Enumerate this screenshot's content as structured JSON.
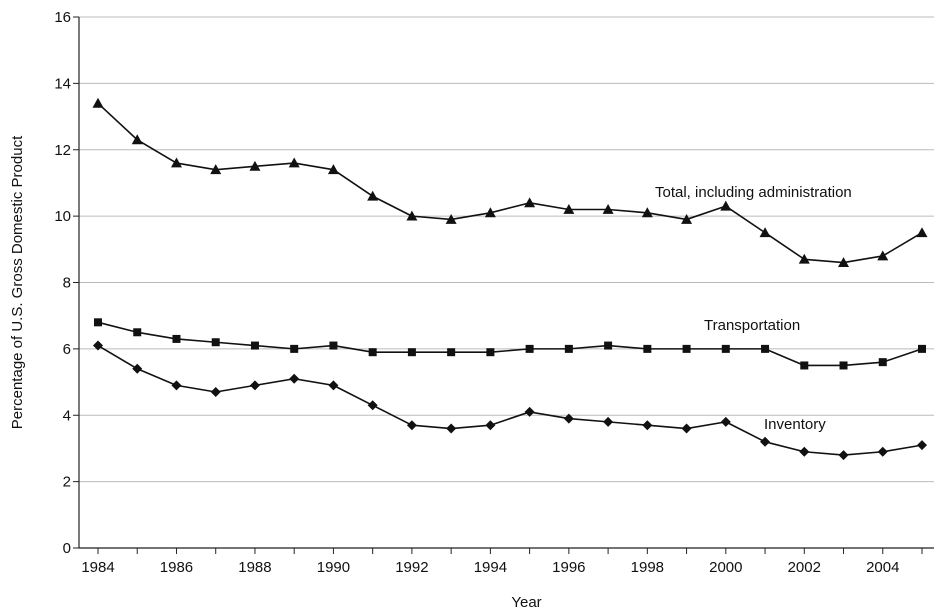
{
  "chart_data": {
    "type": "line",
    "title": "",
    "xlabel": "Year",
    "ylabel": "Percentage of U.S. Gross Domestic Product",
    "xlim": [
      1984,
      2005
    ],
    "ylim": [
      0,
      16
    ],
    "x_ticks": [
      "1984",
      "1986",
      "1988",
      "1990",
      "1992",
      "1994",
      "1996",
      "1998",
      "2000",
      "2002",
      "2004"
    ],
    "y_ticks": [
      "0",
      "2",
      "4",
      "6",
      "8",
      "10",
      "12",
      "14",
      "16"
    ],
    "grid": "horizontal",
    "colors": {
      "line": "#111111",
      "grid": "#bbbbbb",
      "axis": "#222222"
    },
    "x": [
      1984,
      1985,
      1986,
      1987,
      1988,
      1989,
      1990,
      1991,
      1992,
      1993,
      1994,
      1995,
      1996,
      1997,
      1998,
      1999,
      2000,
      2001,
      2002,
      2003,
      2004,
      2005
    ],
    "series": [
      {
        "name": "Total, including administration",
        "marker": "triangle",
        "values": [
          13.4,
          12.3,
          11.6,
          11.4,
          11.5,
          11.6,
          11.4,
          10.6,
          10.0,
          9.9,
          10.1,
          10.4,
          10.2,
          10.2,
          10.1,
          9.9,
          10.3,
          9.5,
          8.7,
          8.6,
          8.8,
          9.5
        ]
      },
      {
        "name": "Transportation",
        "marker": "square",
        "values": [
          6.8,
          6.5,
          6.3,
          6.2,
          6.1,
          6.0,
          6.1,
          5.9,
          5.9,
          5.9,
          5.9,
          6.0,
          6.0,
          6.1,
          6.0,
          6.0,
          6.0,
          6.0,
          5.5,
          5.5,
          5.6,
          6.0
        ]
      },
      {
        "name": "Inventory",
        "marker": "diamond",
        "values": [
          6.1,
          5.4,
          4.9,
          4.7,
          4.9,
          5.1,
          4.9,
          4.3,
          3.7,
          3.6,
          3.7,
          4.1,
          3.9,
          3.8,
          3.7,
          3.6,
          3.8,
          3.2,
          2.9,
          2.8,
          2.9,
          3.1
        ]
      }
    ],
    "annotations": [
      {
        "text": "Total, including administration",
        "series": 0
      },
      {
        "text": "Transportation",
        "series": 1
      },
      {
        "text": "Inventory",
        "series": 2
      }
    ]
  }
}
